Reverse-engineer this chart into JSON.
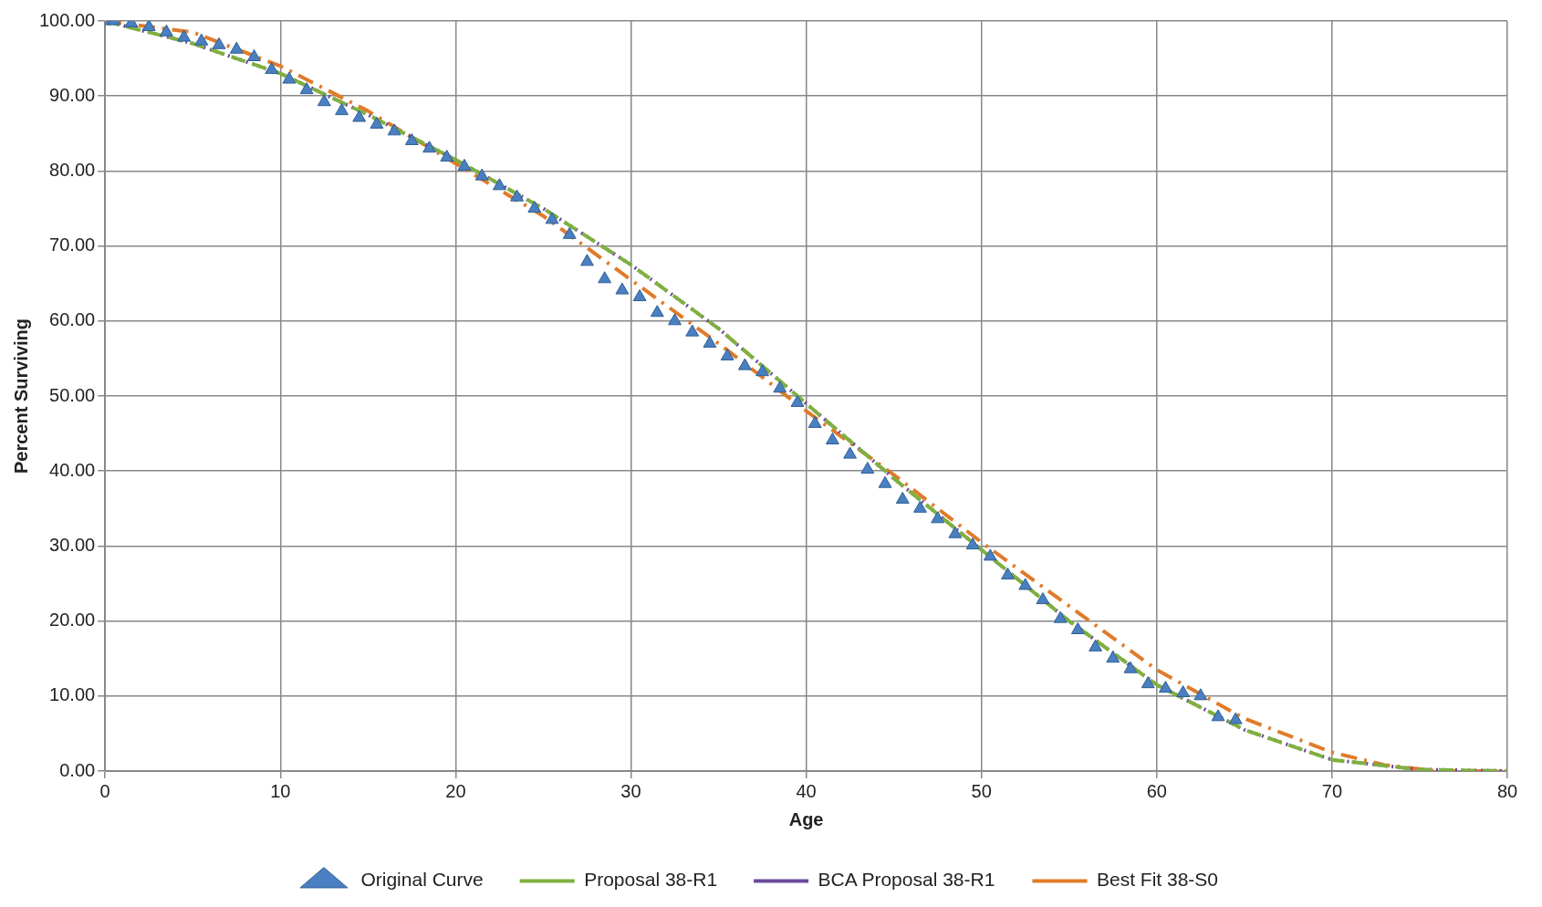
{
  "chart_data": {
    "type": "scatter",
    "xlabel": "Age",
    "ylabel": "Percent Surviving",
    "xlim": [
      0,
      80
    ],
    "xticks": [
      0,
      10,
      20,
      30,
      40,
      50,
      60,
      70,
      80
    ],
    "ylim": [
      0,
      100
    ],
    "yticks": [
      {
        "value": 0,
        "label": "0.00"
      },
      {
        "value": 10,
        "label": "10.00"
      },
      {
        "value": 20,
        "label": "20.00"
      },
      {
        "value": 30,
        "label": "30.00"
      },
      {
        "value": 40,
        "label": "40.00"
      },
      {
        "value": 50,
        "label": "50.00"
      },
      {
        "value": 60,
        "label": "60.00"
      },
      {
        "value": 70,
        "label": "70.00"
      },
      {
        "value": 80,
        "label": "80.00"
      },
      {
        "value": 90,
        "label": "90.00"
      },
      {
        "value": 100,
        "label": "100.00"
      }
    ],
    "grid": true,
    "legend": "bottom",
    "series": [
      {
        "name": "Original Curve",
        "marker": "triangle",
        "color": "#4a7fc1",
        "x": [
          0,
          0.5,
          1.5,
          2.5,
          3.5,
          4.5,
          5.5,
          6.5,
          7.5,
          8.5,
          9.5,
          10.5,
          11.5,
          12.5,
          13.5,
          14.5,
          15.5,
          16.5,
          17.5,
          18.5,
          19.5,
          20.5,
          21.5,
          22.5,
          23.5,
          24.5,
          25.5,
          26.5,
          27.5,
          28.5,
          29.5,
          30.5,
          31.5,
          32.5,
          33.5,
          34.5,
          35.5,
          36.5,
          37.5,
          38.5,
          39.5,
          40.5,
          41.5,
          42.5,
          43.5,
          44.5,
          45.5,
          46.5,
          47.5,
          48.5,
          49.5,
          50.5,
          51.5,
          52.5,
          53.5,
          54.5,
          55.5,
          56.5,
          57.5,
          58.5,
          59.5,
          60.5,
          61.5,
          62.5,
          63.5,
          64.5
        ],
        "values": [
          100,
          100,
          99.7,
          99.2,
          98.5,
          97.8,
          97.3,
          96.8,
          96.2,
          95.2,
          93.5,
          92.2,
          90.8,
          89.2,
          88.0,
          87.1,
          86.2,
          85.3,
          84.0,
          83.0,
          81.8,
          80.6,
          79.3,
          78.0,
          76.5,
          75.0,
          73.5,
          71.5,
          67.9,
          65.6,
          64.1,
          63.2,
          61.1,
          60.0,
          58.5,
          57.0,
          55.3,
          54.0,
          53.2,
          51.0,
          49.1,
          46.3,
          44.1,
          42.2,
          40.2,
          38.3,
          36.2,
          35.0,
          33.6,
          31.6,
          30.1,
          28.6,
          26.1,
          24.7,
          22.8,
          20.3,
          18.8,
          16.5,
          15.0,
          13.6,
          11.6,
          11.0,
          10.4,
          10.0,
          7.2,
          6.8
        ]
      },
      {
        "name": "Proposal 38-R1",
        "type": "line",
        "marker": "none",
        "line_style": "dashed",
        "color": "#7fb03f",
        "x": [
          0,
          5,
          10,
          15,
          20,
          25,
          30,
          35,
          40,
          45,
          50,
          55,
          60,
          65,
          70,
          75,
          80
        ],
        "values": [
          100,
          97,
          93,
          87.5,
          81.5,
          75,
          67.5,
          59,
          49,
          39,
          29.5,
          20,
          11.5,
          5.5,
          1.5,
          0.2,
          0
        ]
      },
      {
        "name": "BCA Proposal 38-R1",
        "type": "line",
        "marker": "none",
        "line_style": "dotted",
        "color": "#6a4b9a",
        "x": [
          0,
          5,
          10,
          15,
          20,
          25,
          30,
          35,
          40,
          45,
          50,
          55,
          60,
          65,
          70,
          75,
          80
        ],
        "values": [
          100,
          97,
          93,
          87.5,
          81.5,
          75,
          67.5,
          59,
          49,
          39,
          29.5,
          20,
          11.5,
          5.5,
          1.5,
          0.2,
          0
        ]
      },
      {
        "name": "Best Fit 38-S0",
        "type": "line",
        "marker": "none",
        "line_style": "dashdot",
        "color": "#e07b2a",
        "x": [
          0,
          5,
          10,
          15,
          20,
          25,
          30,
          35,
          40,
          45,
          50,
          55,
          60,
          65,
          70,
          73,
          76,
          80
        ],
        "values": [
          100,
          98.5,
          94,
          88,
          81,
          74,
          65.5,
          57,
          48,
          39.5,
          30.5,
          22,
          13.5,
          7,
          2.5,
          0.8,
          0,
          0
        ]
      }
    ]
  }
}
